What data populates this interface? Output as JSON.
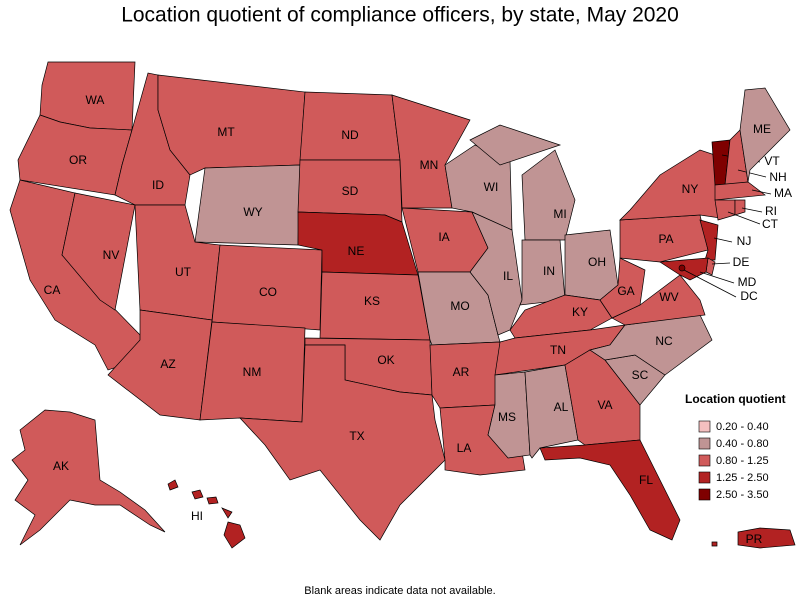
{
  "title": "Location quotient of compliance officers, by state, May 2020",
  "footnote": "Blank areas indicate data not available.",
  "legend": {
    "title": "Location quotient",
    "items": [
      {
        "label": "0.20 - 0.40",
        "color": "#f4c0c0",
        "states": []
      },
      {
        "label": "0.40 - 0.80",
        "color": "#c09494",
        "states": [
          "WY",
          "WI",
          "MI",
          "IL",
          "IN",
          "OH",
          "MO",
          "MS",
          "AL",
          "NC",
          "SC",
          "ME"
        ]
      },
      {
        "label": "0.80 - 1.25",
        "color": "#d05a5a",
        "states": [
          "WA",
          "OR",
          "CA",
          "NV",
          "ID",
          "MT",
          "UT",
          "AZ",
          "CO",
          "NM",
          "ND",
          "SD",
          "KS",
          "OK",
          "TX",
          "MN",
          "IA",
          "AR",
          "LA",
          "TN",
          "KY",
          "WV",
          "VA",
          "GA",
          "PA",
          "NY",
          "DE",
          "CT",
          "RI",
          "NH",
          "MA",
          "AK"
        ]
      },
      {
        "label": "1.25 - 2.50",
        "color": "#b22222",
        "states": [
          "NE",
          "FL",
          "NJ",
          "MD",
          "HI",
          "PR"
        ]
      },
      {
        "label": "2.50 - 3.50",
        "color": "#7f0000",
        "states": [
          "VT",
          "DC"
        ]
      }
    ]
  }
}
